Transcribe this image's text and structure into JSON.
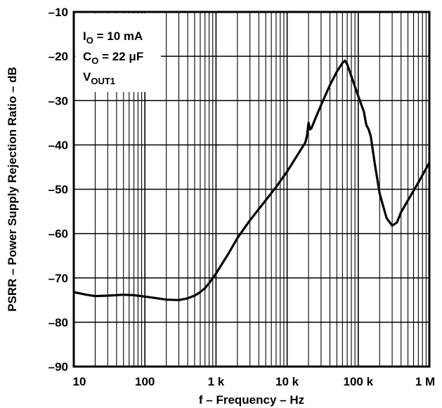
{
  "chart_data": {
    "type": "line",
    "title": "",
    "xlabel": "f – Frequency – Hz",
    "ylabel": "PSRR – Power Supply Rejection Ratio – dB",
    "x_scale": "log",
    "xlim": [
      10,
      1000000
    ],
    "ylim": [
      -90,
      -10
    ],
    "grid": true,
    "x_ticks": [
      {
        "value": 10,
        "label": "10"
      },
      {
        "value": 100,
        "label": "100"
      },
      {
        "value": 1000,
        "label": "1 k"
      },
      {
        "value": 10000,
        "label": "10 k"
      },
      {
        "value": 100000,
        "label": "100 k"
      },
      {
        "value": 1000000,
        "label": "1 M"
      }
    ],
    "y_ticks": [
      {
        "value": -10,
        "label": "–10"
      },
      {
        "value": -20,
        "label": "–20"
      },
      {
        "value": -30,
        "label": "–30"
      },
      {
        "value": -40,
        "label": "–40"
      },
      {
        "value": -50,
        "label": "–50"
      },
      {
        "value": -60,
        "label": "–60"
      },
      {
        "value": -70,
        "label": "–70"
      },
      {
        "value": -80,
        "label": "–80"
      },
      {
        "value": -90,
        "label": "–90"
      }
    ],
    "annotations": [
      {
        "main": "I",
        "sub": "O",
        "rest": " = 10 mA"
      },
      {
        "main": "C",
        "sub": "O",
        "rest": " = 22 μF"
      },
      {
        "main": "V",
        "sub": "OUT1",
        "rest": ""
      }
    ],
    "series": [
      {
        "color": "#000000",
        "x": [
          10,
          15,
          20,
          30,
          50,
          70,
          100,
          150,
          200,
          300,
          400,
          500,
          600,
          700,
          800,
          1000,
          1500,
          2000,
          3000,
          5000,
          7000,
          10000,
          15000,
          18000,
          19000,
          20000,
          21000,
          22000,
          25000,
          30000,
          40000,
          50000,
          60000,
          65000,
          70000,
          80000,
          100000,
          120000,
          130000,
          140000,
          150000,
          170000,
          200000,
          250000,
          300000,
          350000,
          400000,
          500000,
          700000,
          1000000
        ],
        "y": [
          -73.2,
          -73.8,
          -74.1,
          -74.0,
          -73.8,
          -73.9,
          -74.2,
          -74.6,
          -74.9,
          -75.0,
          -74.6,
          -74.0,
          -73.2,
          -72.3,
          -71.2,
          -69.0,
          -64.5,
          -61.0,
          -57.0,
          -52.5,
          -49.5,
          -46.0,
          -41.5,
          -39.5,
          -38.0,
          -35.0,
          -36.5,
          -36.2,
          -34.0,
          -31.0,
          -26.5,
          -23.5,
          -21.5,
          -21.0,
          -21.8,
          -24.5,
          -29.0,
          -32.5,
          -35.5,
          -36.5,
          -38.0,
          -44.0,
          -51.0,
          -56.5,
          -58.2,
          -57.5,
          -55.2,
          -52.5,
          -48.5,
          -44.0
        ]
      }
    ]
  }
}
